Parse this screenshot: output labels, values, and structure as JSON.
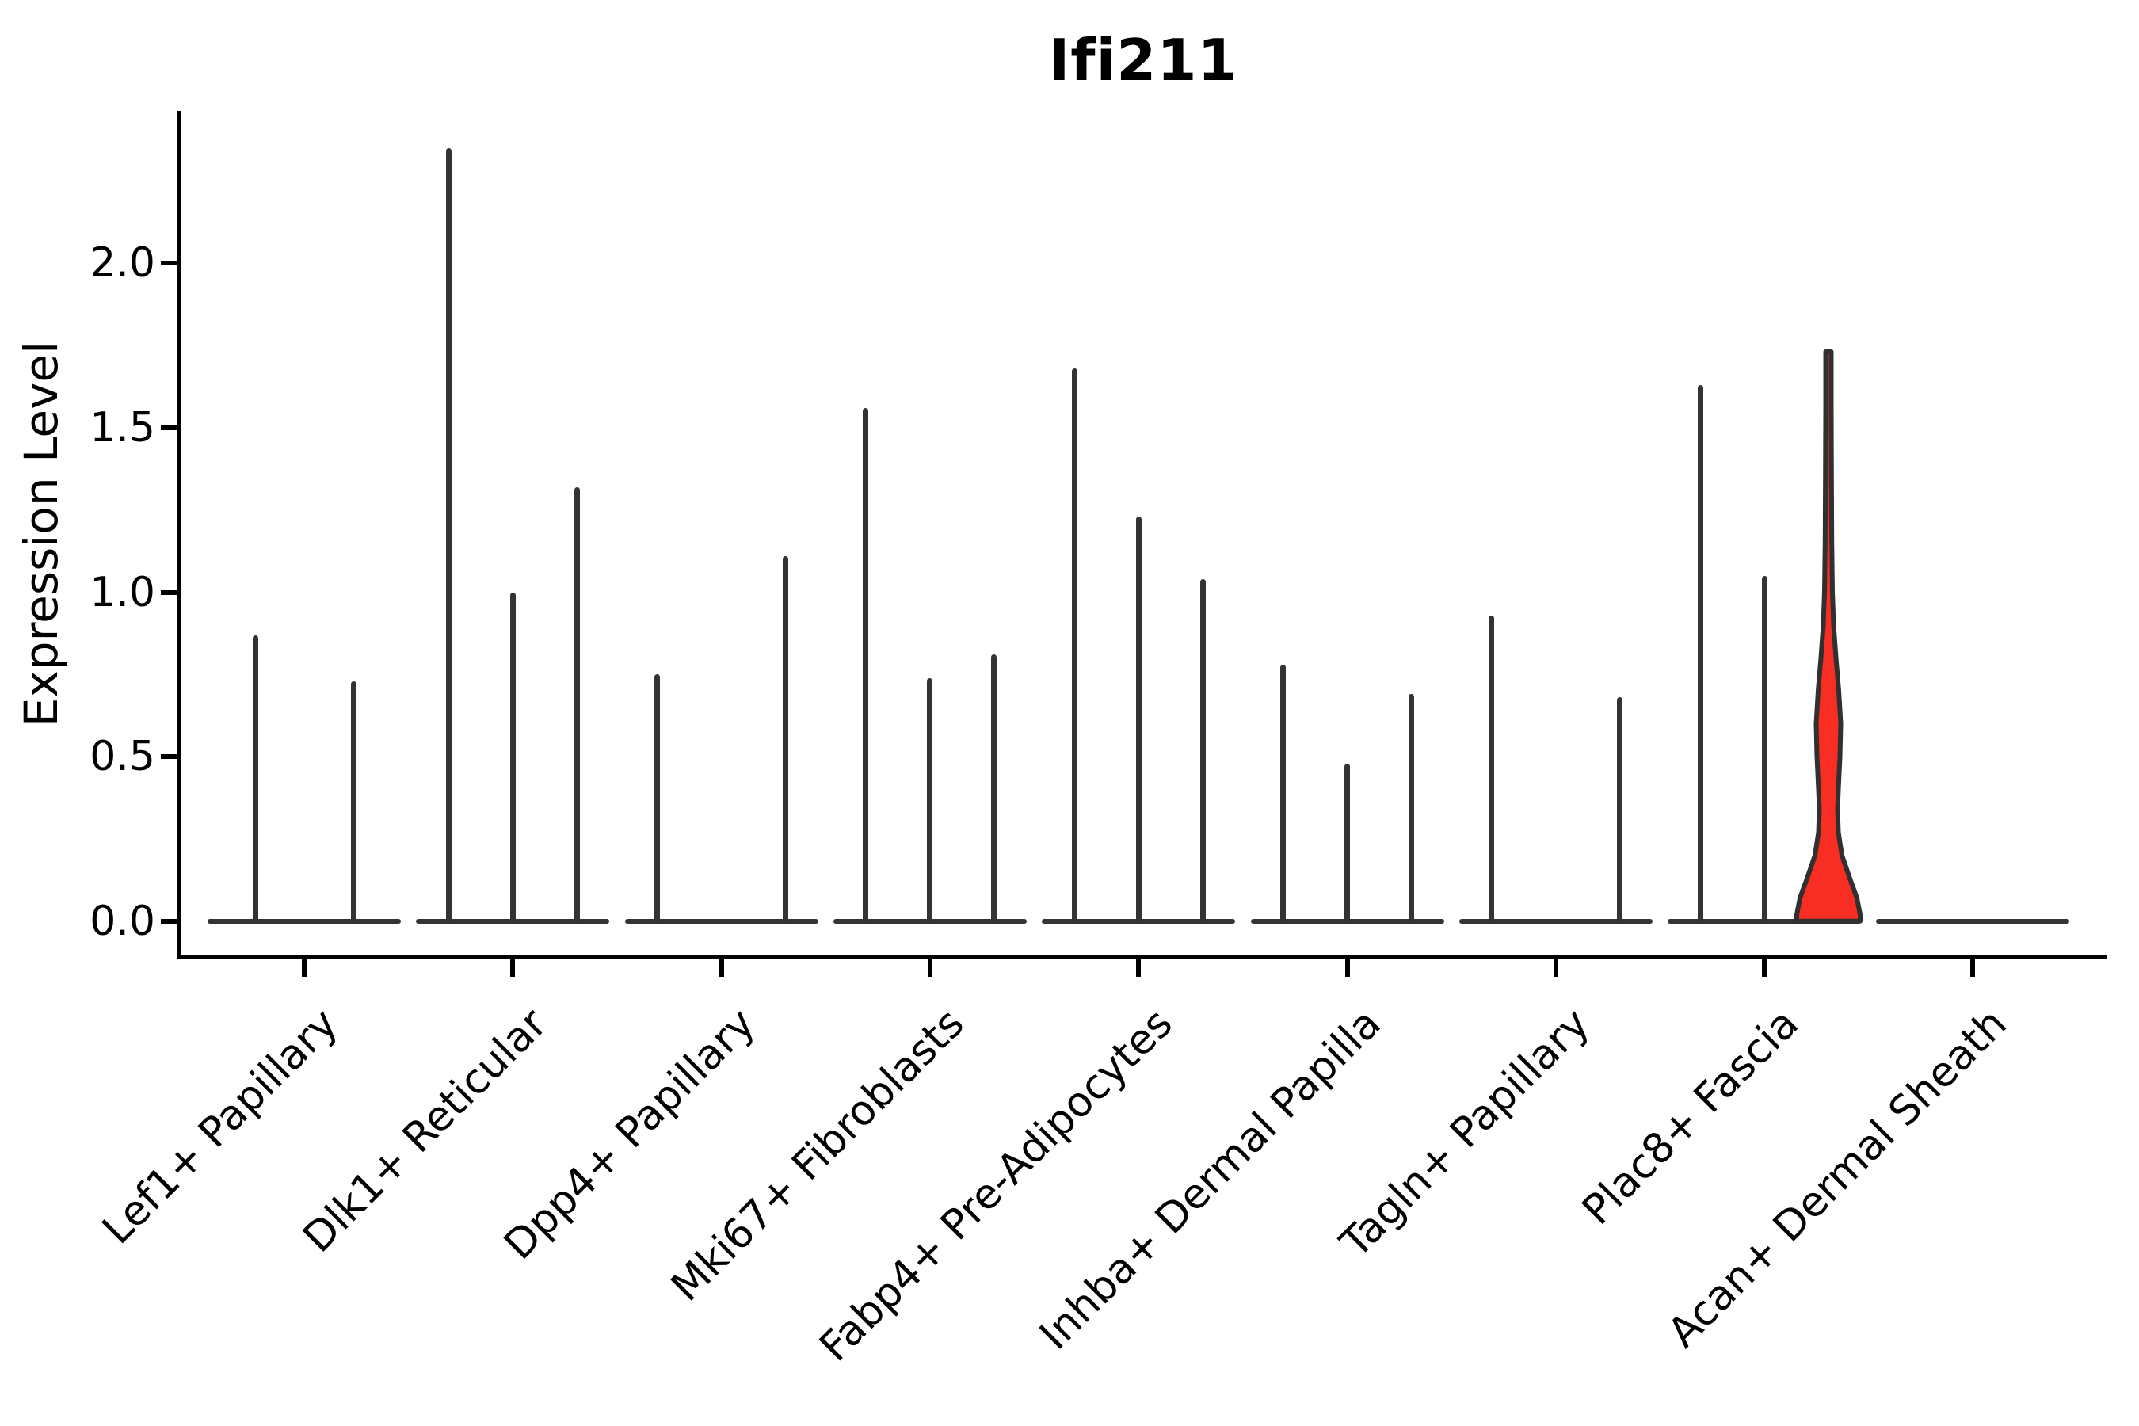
{
  "figure": {
    "title": "Ifi211",
    "y_axis_title": "Expression Level"
  },
  "chart_data": {
    "type": "violin",
    "title": "Ifi211",
    "xlabel": "",
    "ylabel": "Expression Level",
    "ylim": [
      0,
      2.45
    ],
    "yticks": [
      "0.0",
      "0.5",
      "1.0",
      "1.5",
      "2.0"
    ],
    "ytick_values": [
      0.0,
      0.5,
      1.0,
      1.5,
      2.0
    ],
    "grid": false,
    "legend": "none",
    "categories": [
      "Lef1+ Papillary",
      "Dlk1+ Reticular",
      "Dpp4+ Papillary",
      "Mki67+ Fibroblasts",
      "Fabp4+ Pre-Adipocytes",
      "Inhba+ Dermal Papilla",
      "Tagln+ Papillary",
      "Plac8+ Fascia",
      "Acan+ Dermal Sheath"
    ],
    "groups": [
      {
        "category": "Lef1+ Papillary",
        "violins": [
          {
            "slot": -1,
            "max": 0.87
          },
          {
            "slot": 1,
            "max": 0.73
          }
        ]
      },
      {
        "category": "Dlk1+ Reticular",
        "violins": [
          {
            "slot": -1,
            "max": 2.35
          },
          {
            "slot": 0,
            "max": 1.0
          },
          {
            "slot": 1,
            "max": 1.32
          }
        ]
      },
      {
        "category": "Dpp4+ Papillary",
        "violins": [
          {
            "slot": -1,
            "max": 0.75
          },
          {
            "slot": 0,
            "max": 0.0
          },
          {
            "slot": 1,
            "max": 1.11
          }
        ]
      },
      {
        "category": "Mki67+ Fibroblasts",
        "violins": [
          {
            "slot": -1,
            "max": 1.56
          },
          {
            "slot": 0,
            "max": 0.74
          },
          {
            "slot": 1,
            "max": 0.81
          }
        ]
      },
      {
        "category": "Fabp4+ Pre-Adipocytes",
        "violins": [
          {
            "slot": -1,
            "max": 1.68
          },
          {
            "slot": 0,
            "max": 1.23
          },
          {
            "slot": 1,
            "max": 1.04
          }
        ]
      },
      {
        "category": "Inhba+ Dermal Papilla",
        "violins": [
          {
            "slot": -1,
            "max": 0.78
          },
          {
            "slot": 0,
            "max": 0.48
          },
          {
            "slot": 1,
            "max": 0.69
          }
        ]
      },
      {
        "category": "Tagln+ Papillary",
        "violins": [
          {
            "slot": -1,
            "max": 0.93
          },
          {
            "slot": 0,
            "max": 0.0
          },
          {
            "slot": 1,
            "max": 0.68
          }
        ]
      },
      {
        "category": "Plac8+ Fascia",
        "violins": [
          {
            "slot": -1,
            "max": 1.63
          },
          {
            "slot": 0,
            "max": 1.05
          },
          {
            "slot": 1,
            "max": 1.73,
            "highlight": true
          }
        ]
      },
      {
        "category": "Acan+ Dermal Sheath",
        "violins": [
          {
            "slot": -1,
            "max": 0.0
          },
          {
            "slot": 0,
            "max": 0.0
          },
          {
            "slot": 1,
            "max": 0.0
          }
        ]
      }
    ],
    "highlight_violin": {
      "group": "Plac8+ Fascia",
      "slot": 1,
      "max": 1.73,
      "fill_color": "#f82d23",
      "outline_color": "#303030",
      "profile_value_halfwidth": [
        [
          1.73,
          3.5
        ],
        [
          1.55,
          3.5
        ],
        [
          1.35,
          3.8
        ],
        [
          1.15,
          4.2
        ],
        [
          1.0,
          5.0
        ],
        [
          0.9,
          6.5
        ],
        [
          0.8,
          9.5
        ],
        [
          0.7,
          13.0
        ],
        [
          0.6,
          15.5
        ],
        [
          0.5,
          14.5
        ],
        [
          0.4,
          12.5
        ],
        [
          0.34,
          11.5
        ],
        [
          0.27,
          12.5
        ],
        [
          0.2,
          17.0
        ],
        [
          0.13,
          27.0
        ],
        [
          0.07,
          36.0
        ],
        [
          0.02,
          40.0
        ],
        [
          0.0,
          40.0
        ]
      ]
    },
    "colors": {
      "spike": "#333333",
      "baseline": "#343434",
      "axis": "#000000",
      "highlight_fill": "#f82d23",
      "highlight_outline": "#303030",
      "background": "#ffffff"
    }
  }
}
